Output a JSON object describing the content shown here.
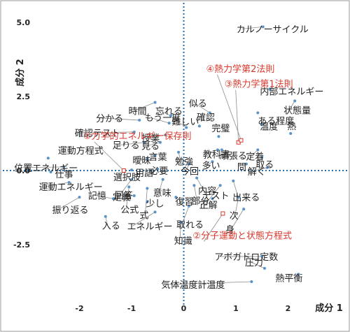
{
  "chart_data": {
    "type": "scatter",
    "xlabel": "成分 1",
    "ylabel": "成分 2",
    "xlim": [
      -2.8,
      2.6
    ],
    "ylim": [
      -4.25,
      5.15
    ],
    "xticks": [
      -2,
      -1,
      0,
      1,
      2
    ],
    "yticks": [
      5.0,
      2.5,
      0.0,
      -2.5
    ],
    "xtick_labels": [
      "-2",
      "-1",
      "0",
      "1",
      "2"
    ],
    "ytick_labels": [
      "5.0",
      "2.5",
      "0.0",
      "-2.5"
    ],
    "grid": false,
    "colors": {
      "point": "#5b93c7",
      "concept": "#d9382c",
      "axis_line": "#1f6fb5",
      "text": "#222222"
    },
    "words": [
      {
        "label": "カルノーサイクル",
        "x": 1.52,
        "y": 4.85
      },
      {
        "label": "内部エネルギー",
        "x": 1.65,
        "y": 2.75
      },
      {
        "label": "状態量",
        "x": 2.13,
        "y": 2.35
      },
      {
        "label": "ある程度",
        "x": 1.42,
        "y": 1.95
      },
      {
        "label": "温度",
        "x": 1.5,
        "y": 1.55
      },
      {
        "label": "熱",
        "x": 2.05,
        "y": 1.25
      },
      {
        "label": "似る",
        "x": 0.5,
        "y": 1.95
      },
      {
        "label": "確認",
        "x": 0.3,
        "y": 1.5
      },
      {
        "label": "完璧",
        "x": 0.67,
        "y": 1.15
      },
      {
        "label": "教科書",
        "x": 0.65,
        "y": 0.7
      },
      {
        "label": "頑張る",
        "x": 0.73,
        "y": 0.7
      },
      {
        "label": "定着",
        "x": 1.42,
        "y": 0.7
      },
      {
        "label": "取る",
        "x": 1.5,
        "y": 0.45
      },
      {
        "label": "問",
        "x": 1.2,
        "y": 0.22
      },
      {
        "label": "解く",
        "x": 1.6,
        "y": 0.1
      },
      {
        "label": "時間",
        "x": -0.55,
        "y": 2.3
      },
      {
        "label": "忘れる",
        "x": -0.25,
        "y": 1.85
      },
      {
        "label": "もう一度",
        "x": -0.28,
        "y": 1.6
      },
      {
        "label": "難しい",
        "x": 0.05,
        "y": 1.45
      },
      {
        "label": "分かる",
        "x": -0.85,
        "y": 1.7
      },
      {
        "label": "確認テスト",
        "x": -0.95,
        "y": 1.3
      },
      {
        "label": "授業",
        "x": -0.35,
        "y": 1.2
      },
      {
        "label": "足りる",
        "x": -0.75,
        "y": 0.95
      },
      {
        "label": "見る",
        "x": -0.45,
        "y": 0.95
      },
      {
        "label": "勉強",
        "x": -0.1,
        "y": 0.62
      },
      {
        "label": "言葉",
        "x": -0.55,
        "y": 0.5
      },
      {
        "label": "曖昧",
        "x": -0.7,
        "y": 0.4
      },
      {
        "label": "今回",
        "x": 0.1,
        "y": 0.22
      },
      {
        "label": "多い",
        "x": 0.55,
        "y": 0.3
      },
      {
        "label": "必要",
        "x": -0.5,
        "y": 0.05
      },
      {
        "label": "用語",
        "x": -1.0,
        "y": 0.02
      },
      {
        "label": "選択肢",
        "x": -1.15,
        "y": -0.02
      },
      {
        "label": "定義",
        "x": -1.0,
        "y": -0.3
      },
      {
        "label": "意味",
        "x": -0.4,
        "y": -0.3
      },
      {
        "label": "内容",
        "x": 0.25,
        "y": -0.25
      },
      {
        "label": "出来る",
        "x": 0.95,
        "y": -0.35
      },
      {
        "label": "運動方程式",
        "x": -2.6,
        "y": 0.42
      },
      {
        "label": "位置エネルギー",
        "x": -2.3,
        "y": 0.12
      },
      {
        "label": "仕事",
        "x": -2.55,
        "y": -0.05
      },
      {
        "label": "運動エネルギー",
        "x": -2.2,
        "y": -0.4
      },
      {
        "label": "振り返る",
        "x": -2.0,
        "y": -0.9
      },
      {
        "label": "公式",
        "x": -1.05,
        "y": -0.55
      },
      {
        "label": "式",
        "x": -0.7,
        "y": -0.6
      },
      {
        "label": "部分",
        "x": 0.2,
        "y": -0.5
      },
      {
        "label": "正解",
        "x": 0.7,
        "y": -0.5
      },
      {
        "label": "次",
        "x": 1.05,
        "y": -0.9
      },
      {
        "label": "身",
        "x": 1.15,
        "y": -1.3
      },
      {
        "label": "記憶",
        "x": -1.35,
        "y": -0.95
      },
      {
        "label": "回答",
        "x": -0.95,
        "y": -0.85
      },
      {
        "label": "少し",
        "x": -0.7,
        "y": -1.05
      },
      {
        "label": "復習",
        "x": -0.15,
        "y": -0.9
      },
      {
        "label": "テスト",
        "x": 0.55,
        "y": -0.95
      },
      {
        "label": "取れる",
        "x": 0.1,
        "y": -1.2
      },
      {
        "label": "入る",
        "x": -1.5,
        "y": -1.55
      },
      {
        "label": "エネルギー",
        "x": -0.55,
        "y": -1.4
      },
      {
        "label": "知識",
        "x": -0.05,
        "y": -1.75
      },
      {
        "label": "アボガドロ定数",
        "x": 1.5,
        "y": -2.9
      },
      {
        "label": "圧力",
        "x": 1.55,
        "y": -3.3
      },
      {
        "label": "熱平衡",
        "x": 2.2,
        "y": -3.5
      },
      {
        "label": "気体温度計温度",
        "x": 1.3,
        "y": -3.75
      }
    ],
    "concepts": [
      {
        "label": "①力学的エネルギー保存則",
        "x": -1.15,
        "y": 0.0
      },
      {
        "label": "②分子運動と状態方程式",
        "x": 0.75,
        "y": -1.45
      },
      {
        "label": "③熱力学第1法則",
        "x": 1.05,
        "y": 0.95
      },
      {
        "label": "④熱力学第2法則",
        "x": 1.1,
        "y": 1.02
      }
    ]
  }
}
